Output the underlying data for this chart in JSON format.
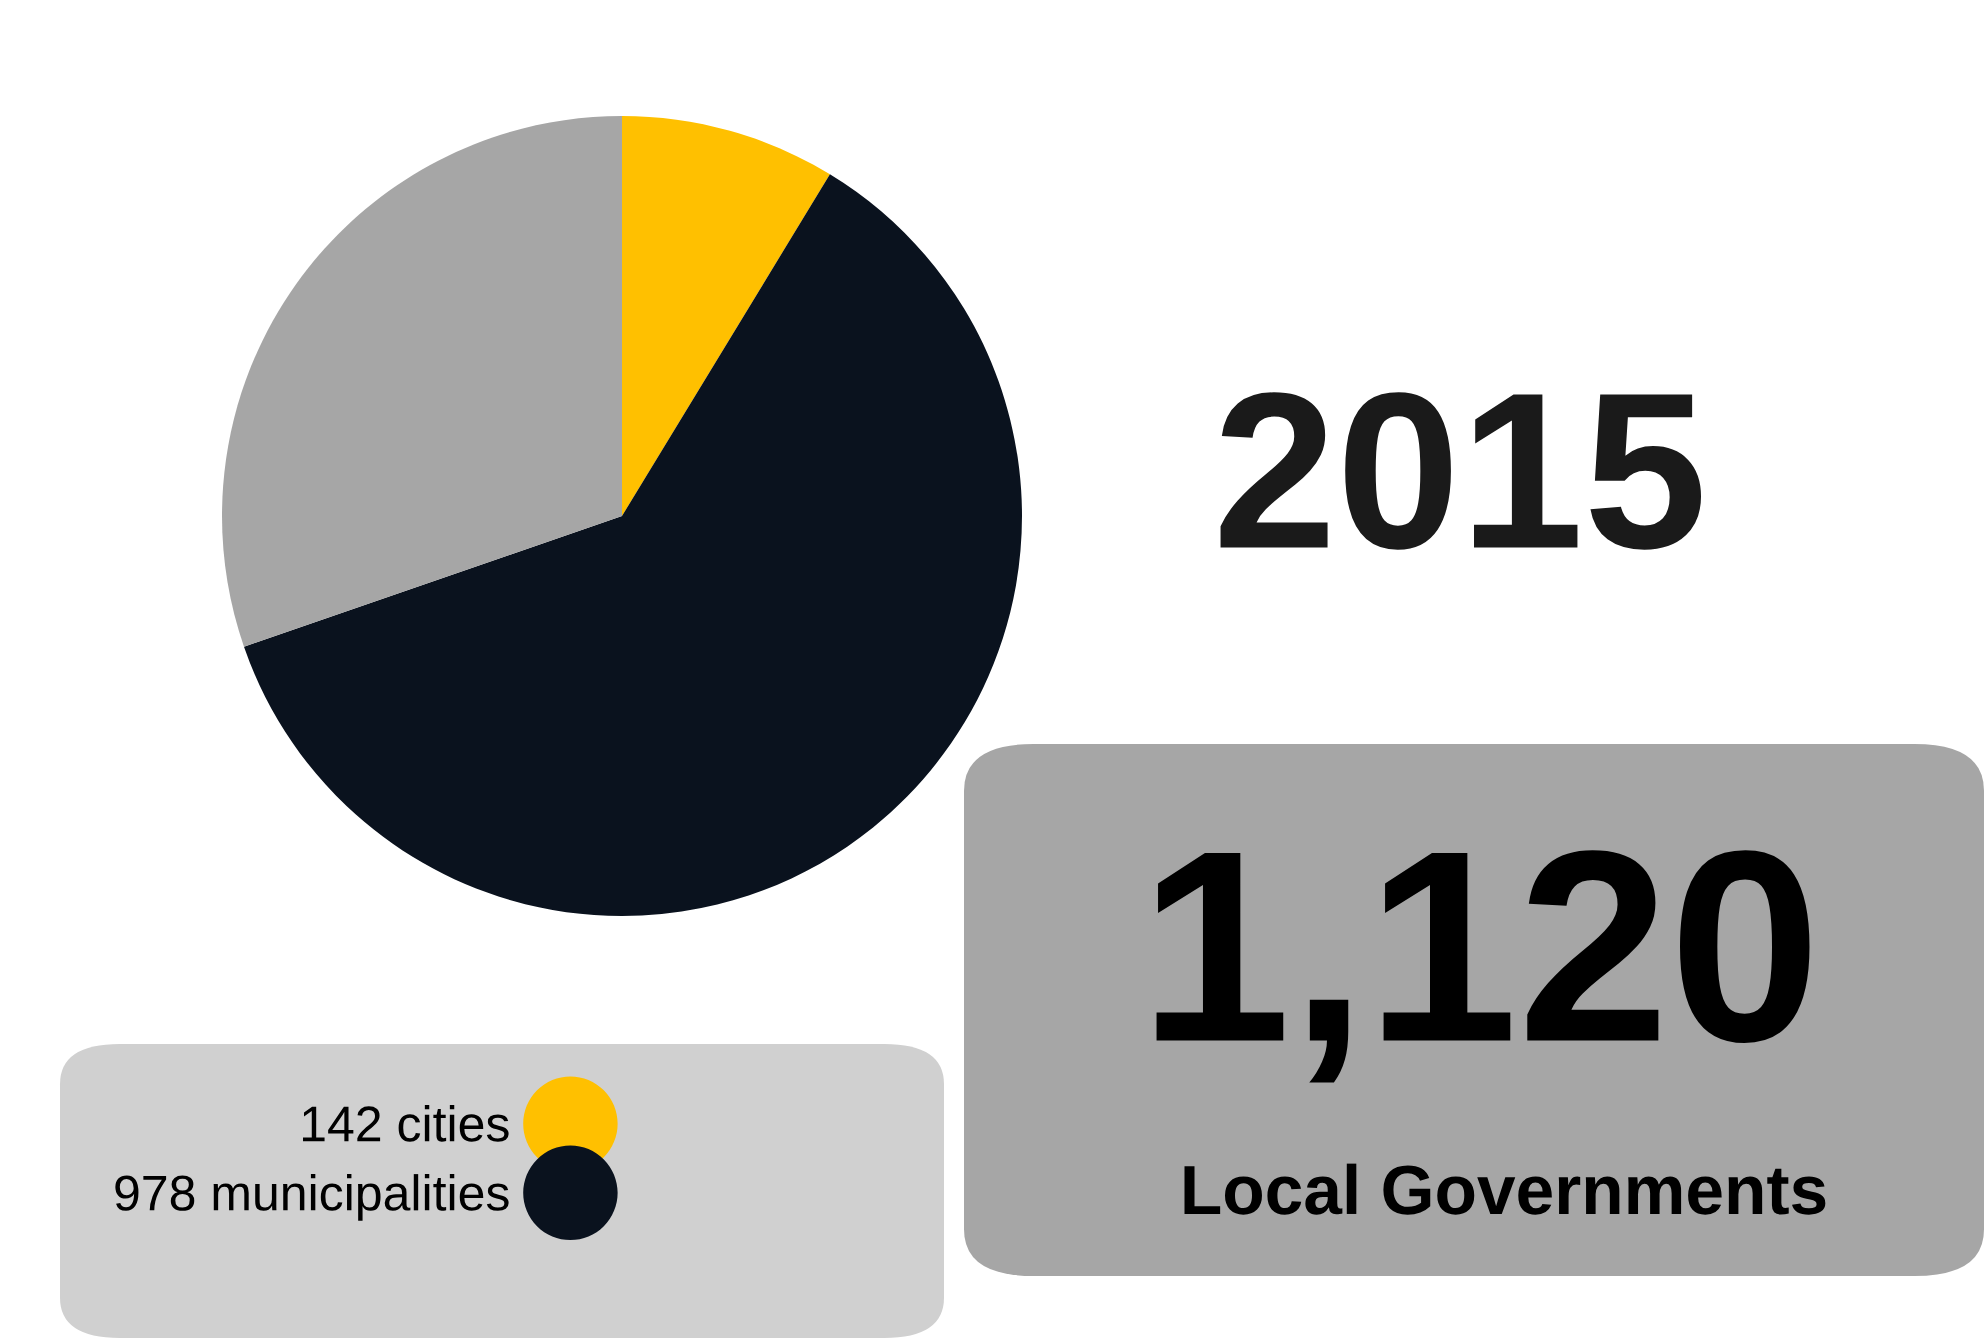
{
  "chart_data": {
    "type": "pie",
    "title": "2015",
    "categories": [
      "142 cities",
      "978 municipalities",
      null
    ],
    "values": [
      8.7,
      61.0,
      30.3
    ],
    "colors": [
      "#ffc000",
      "#0a121e",
      "#a6a6a6"
    ],
    "legend": "bottom left",
    "annotations": [
      "1,120",
      "Local Governments"
    ]
  }
}
